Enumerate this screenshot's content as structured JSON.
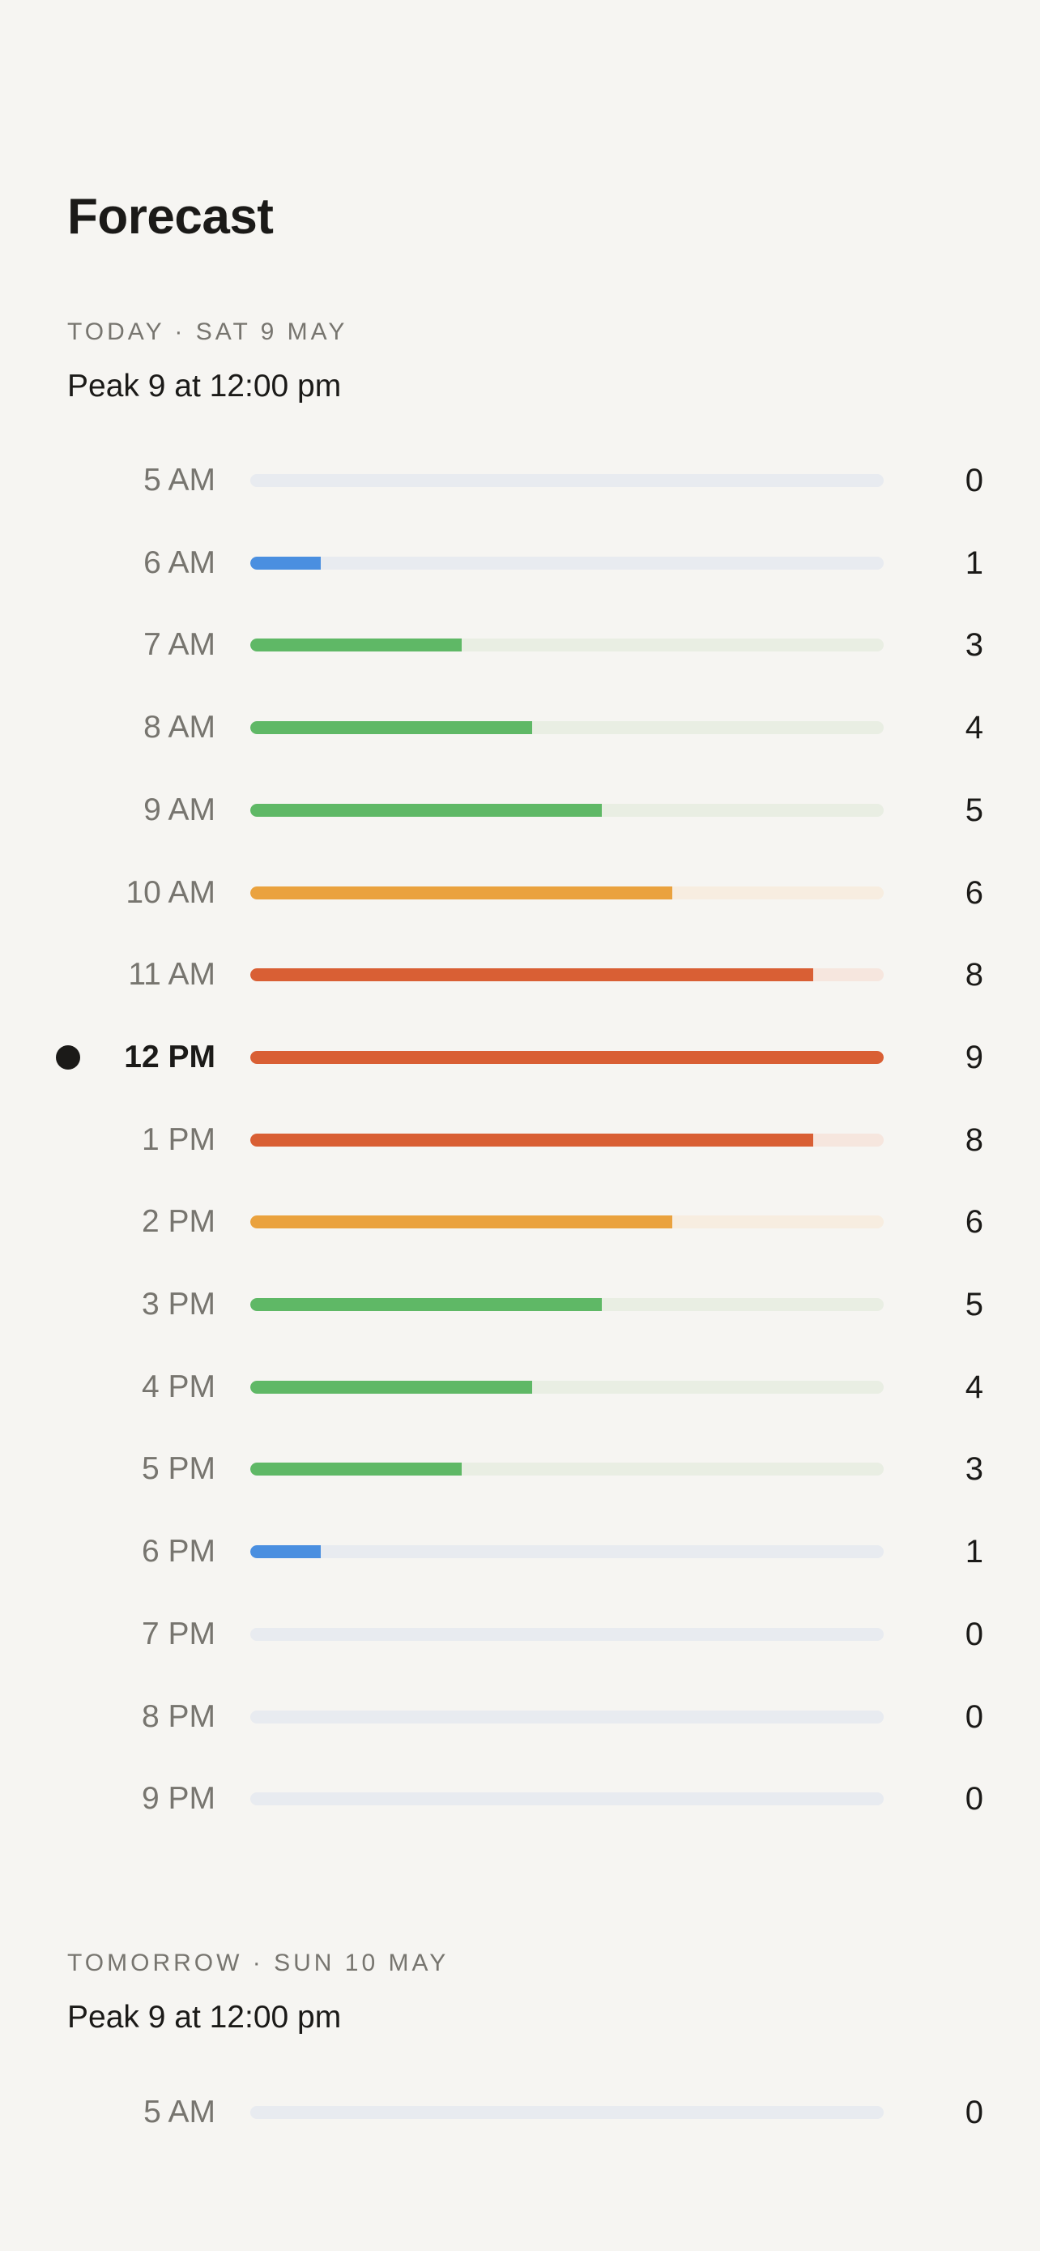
{
  "header": {
    "title": "Forecast"
  },
  "days": [
    {
      "label": "TODAY · SAT 9 MAY",
      "peak": "Peak 9 at 12:00 pm",
      "hours": [
        {
          "hour": "5 AM",
          "value": "0",
          "level": 0,
          "color": "blue"
        },
        {
          "hour": "6 AM",
          "value": "1",
          "level": 1,
          "color": "blue"
        },
        {
          "hour": "7 AM",
          "value": "3",
          "level": 3,
          "color": "green"
        },
        {
          "hour": "8 AM",
          "value": "4",
          "level": 4,
          "color": "green"
        },
        {
          "hour": "9 AM",
          "value": "5",
          "level": 5,
          "color": "green"
        },
        {
          "hour": "10 AM",
          "value": "6",
          "level": 6,
          "color": "orange"
        },
        {
          "hour": "11 AM",
          "value": "8",
          "level": 8,
          "color": "red"
        },
        {
          "hour": "12 PM",
          "value": "9",
          "level": 9,
          "color": "red",
          "current": true
        },
        {
          "hour": "1 PM",
          "value": "8",
          "level": 8,
          "color": "red"
        },
        {
          "hour": "2 PM",
          "value": "6",
          "level": 6,
          "color": "orange"
        },
        {
          "hour": "3 PM",
          "value": "5",
          "level": 5,
          "color": "green"
        },
        {
          "hour": "4 PM",
          "value": "4",
          "level": 4,
          "color": "green"
        },
        {
          "hour": "5 PM",
          "value": "3",
          "level": 3,
          "color": "green"
        },
        {
          "hour": "6 PM",
          "value": "1",
          "level": 1,
          "color": "blue"
        },
        {
          "hour": "7 PM",
          "value": "0",
          "level": 0,
          "color": "blue"
        },
        {
          "hour": "8 PM",
          "value": "0",
          "level": 0,
          "color": "blue"
        },
        {
          "hour": "9 PM",
          "value": "0",
          "level": 0,
          "color": "blue"
        }
      ]
    },
    {
      "label": "TOMORROW · SUN 10 MAY",
      "peak": "Peak 9 at 12:00 pm",
      "hours": [
        {
          "hour": "5 AM",
          "value": "0",
          "level": 0,
          "color": "blue"
        }
      ]
    }
  ],
  "scale_max": 9,
  "colors": {
    "blue": {
      "fill": "#4a8fe0",
      "track": "#e8ebf0"
    },
    "green": {
      "fill": "#5fb866",
      "track": "#e9eee3"
    },
    "orange": {
      "fill": "#eaa23e",
      "track": "#f7ede0"
    },
    "red": {
      "fill": "#d95f34",
      "track": "#f6e6de"
    },
    "text": "#1b1a18",
    "muted": "#77756f",
    "background": "#f6f5f2"
  }
}
